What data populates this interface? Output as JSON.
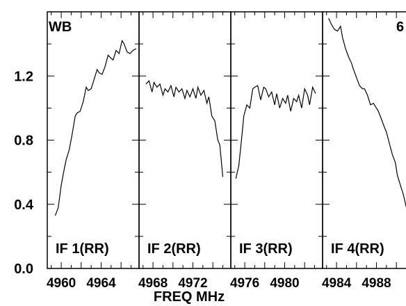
{
  "chart_data": {
    "type": "line",
    "corner_labels": {
      "left": "WB",
      "right": "6"
    },
    "xlabel": "FREQ MHz",
    "ylim": [
      0,
      1.6
    ],
    "yticks": [
      {
        "value": 0.0,
        "label": "0.0"
      },
      {
        "value": 0.4,
        "label": "0.4"
      },
      {
        "value": 0.8,
        "label": "0.8"
      },
      {
        "value": 1.2,
        "label": "1.2"
      }
    ],
    "panels": [
      {
        "label": "IF 1(RR)",
        "xlim": [
          4958.6,
          4967.8
        ],
        "xticks": [
          {
            "value": 4960,
            "label": "4960"
          },
          {
            "value": 4964,
            "label": "4964"
          }
        ],
        "x": [
          4959.4,
          4959.7,
          4960.0,
          4960.3,
          4960.5,
          4960.8,
          4961.1,
          4961.4,
          4961.6,
          4961.9,
          4962.2,
          4962.5,
          4962.7,
          4963.0,
          4963.3,
          4963.6,
          4963.8,
          4964.1,
          4964.4,
          4964.7,
          4965.0,
          4965.2,
          4965.5,
          4965.8,
          4966.1,
          4966.3,
          4966.6,
          4966.9,
          4967.2,
          4967.5
        ],
        "y": [
          0.33,
          0.38,
          0.52,
          0.62,
          0.68,
          0.74,
          0.84,
          0.95,
          0.97,
          0.98,
          1.04,
          1.13,
          1.11,
          1.12,
          1.18,
          1.24,
          1.22,
          1.21,
          1.26,
          1.33,
          1.31,
          1.3,
          1.36,
          1.34,
          1.42,
          1.4,
          1.35,
          1.34,
          1.36,
          1.37
        ]
      },
      {
        "label": "IF 2(RR)",
        "xlim": [
          4966.6,
          4975.8
        ],
        "xticks": [
          {
            "value": 4968,
            "label": "4968"
          },
          {
            "value": 4972,
            "label": "4972"
          }
        ],
        "x": [
          4967.3,
          4967.6,
          4967.9,
          4968.1,
          4968.4,
          4968.7,
          4969.0,
          4969.2,
          4969.5,
          4969.8,
          4970.1,
          4970.3,
          4970.6,
          4970.9,
          4971.2,
          4971.4,
          4971.7,
          4972.0,
          4972.3,
          4972.5,
          4972.8,
          4973.1,
          4973.4,
          4973.6,
          4973.9,
          4974.2,
          4974.5,
          4974.7,
          4975.0
        ],
        "y": [
          1.15,
          1.17,
          1.1,
          1.16,
          1.13,
          1.15,
          1.08,
          1.12,
          1.1,
          1.14,
          1.07,
          1.13,
          1.1,
          1.12,
          1.06,
          1.11,
          1.07,
          1.12,
          1.06,
          1.13,
          1.08,
          1.11,
          1.03,
          1.07,
          0.95,
          0.92,
          0.8,
          0.77,
          0.57
        ]
      },
      {
        "label": "IF 3(RR)",
        "xlim": [
          4974.6,
          4983.8
        ],
        "xticks": [
          {
            "value": 4976,
            "label": "4976"
          },
          {
            "value": 4980,
            "label": "4980"
          }
        ],
        "x": [
          4975.1,
          4975.4,
          4975.7,
          4975.9,
          4976.2,
          4976.5,
          4976.8,
          4977.0,
          4977.3,
          4977.6,
          4977.9,
          4978.1,
          4978.4,
          4978.7,
          4979.0,
          4979.2,
          4979.5,
          4979.8,
          4980.1,
          4980.3,
          4980.6,
          4980.9,
          4981.2,
          4981.4,
          4981.7,
          4982.0,
          4982.3,
          4982.5,
          4982.8,
          4983.1
        ],
        "y": [
          0.56,
          0.64,
          0.82,
          0.95,
          1.02,
          1.0,
          1.12,
          1.13,
          1.14,
          1.05,
          1.13,
          1.12,
          1.07,
          1.1,
          1.02,
          1.09,
          1.0,
          1.06,
          1.03,
          1.08,
          0.98,
          1.06,
          1.04,
          1.08,
          1.0,
          1.12,
          1.08,
          1.02,
          1.13,
          1.09
        ]
      },
      {
        "label": "IF 4(RR)",
        "xlim": [
          4982.6,
          4991.8
        ],
        "xticks": [
          {
            "value": 4984,
            "label": "4984"
          },
          {
            "value": 4988,
            "label": "4988"
          }
        ],
        "x": [
          4983.2,
          4983.5,
          4983.8,
          4984.1,
          4984.4,
          4984.6,
          4984.9,
          4985.2,
          4985.5,
          4985.7,
          4986.0,
          4986.3,
          4986.6,
          4986.8,
          4987.1,
          4987.4,
          4987.7,
          4987.9,
          4988.2,
          4988.5,
          4988.8,
          4989.0,
          4989.3,
          4989.6,
          4989.9,
          4990.1,
          4990.4,
          4990.7,
          4991.0
        ],
        "y": [
          1.56,
          1.52,
          1.49,
          1.48,
          1.51,
          1.44,
          1.37,
          1.32,
          1.28,
          1.24,
          1.19,
          1.14,
          1.12,
          1.12,
          1.08,
          1.02,
          1.03,
          1.01,
          0.98,
          0.93,
          0.88,
          0.85,
          0.78,
          0.71,
          0.66,
          0.58,
          0.52,
          0.46,
          0.38
        ]
      }
    ]
  }
}
